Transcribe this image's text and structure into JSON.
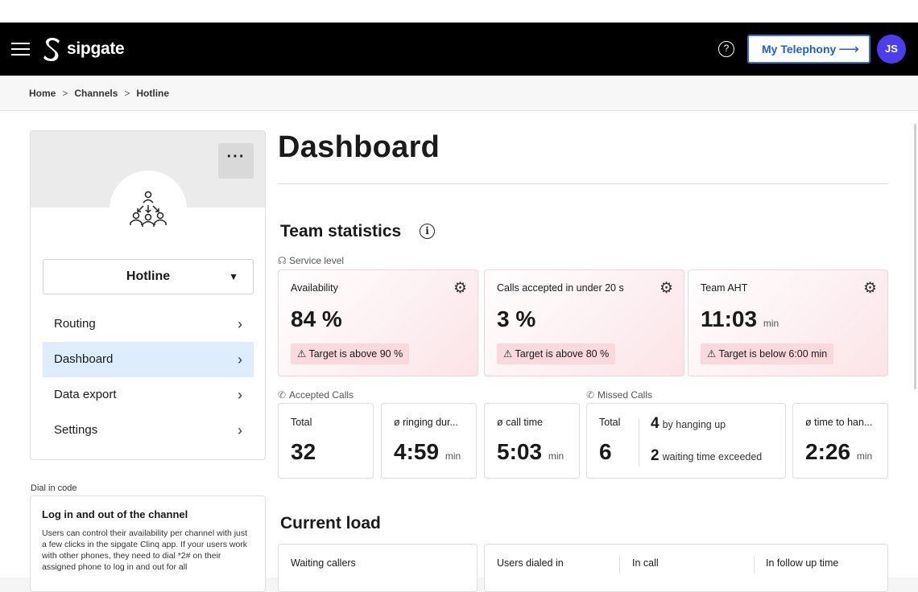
{
  "header": {
    "brand": "sipgate",
    "help_icon": "?",
    "telephony_button": "My Telephony",
    "telephony_arrow": "⟶",
    "avatar_initials": "JS"
  },
  "breadcrumb": [
    "Home",
    "Channels",
    "Hotline"
  ],
  "sidebar": {
    "more_label": "···",
    "channel_name": "Hotline",
    "channel_caret": "▼",
    "nav": [
      {
        "label": "Routing"
      },
      {
        "label": "Dashboard"
      },
      {
        "label": "Data export"
      },
      {
        "label": "Settings"
      }
    ],
    "chevron": "›",
    "dial_in_label": "Dial in code",
    "dial_card": {
      "title": "Log in and out of the channel",
      "text": "Users can control their availability per channel with just a few clicks in the sipgate Clinq app. If your users work with other phones, they need to dial *2# on their assigned phone to log in and out for all"
    }
  },
  "main": {
    "title": "Dashboard",
    "team_statistics": "Team statistics",
    "info_icon": "i",
    "service_level": "Service level",
    "kpis": [
      {
        "label": "Availability",
        "value": "84 %",
        "unit": "",
        "warning": "Target is above 90 %"
      },
      {
        "label": "Calls accepted in under 20 s",
        "value": "3 %",
        "unit": "",
        "warning": "Target is above 80 %"
      },
      {
        "label": "Team AHT",
        "value": "11:03",
        "unit": "min",
        "warning": "Target is below 6:00 min"
      }
    ],
    "gear_icon": "⚙",
    "warn_icon": "⚠",
    "accepted_calls": "Accepted Calls",
    "missed_calls": "Missed Calls",
    "accepted_stats": [
      {
        "label": "Total",
        "value": "32",
        "unit": ""
      },
      {
        "label": "ø ringing dur...",
        "value": "4:59",
        "unit": "min"
      },
      {
        "label": "ø call time",
        "value": "5:03",
        "unit": "min"
      }
    ],
    "missed": {
      "label": "Total",
      "value": "6",
      "hangup_count": "4",
      "hangup_label": "by hanging up",
      "exceeded_count": "2",
      "exceeded_label": "waiting time exceeded"
    },
    "time_to_hangup": {
      "label": "ø time to han...",
      "value": "2:26",
      "unit": "min"
    },
    "current_load": "Current load",
    "load": {
      "waiting_callers": "Waiting callers",
      "users_dialed_in": "Users dialed in",
      "in_call": "In call",
      "in_follow_up": "In follow up time"
    },
    "phone_icon": "✆"
  }
}
